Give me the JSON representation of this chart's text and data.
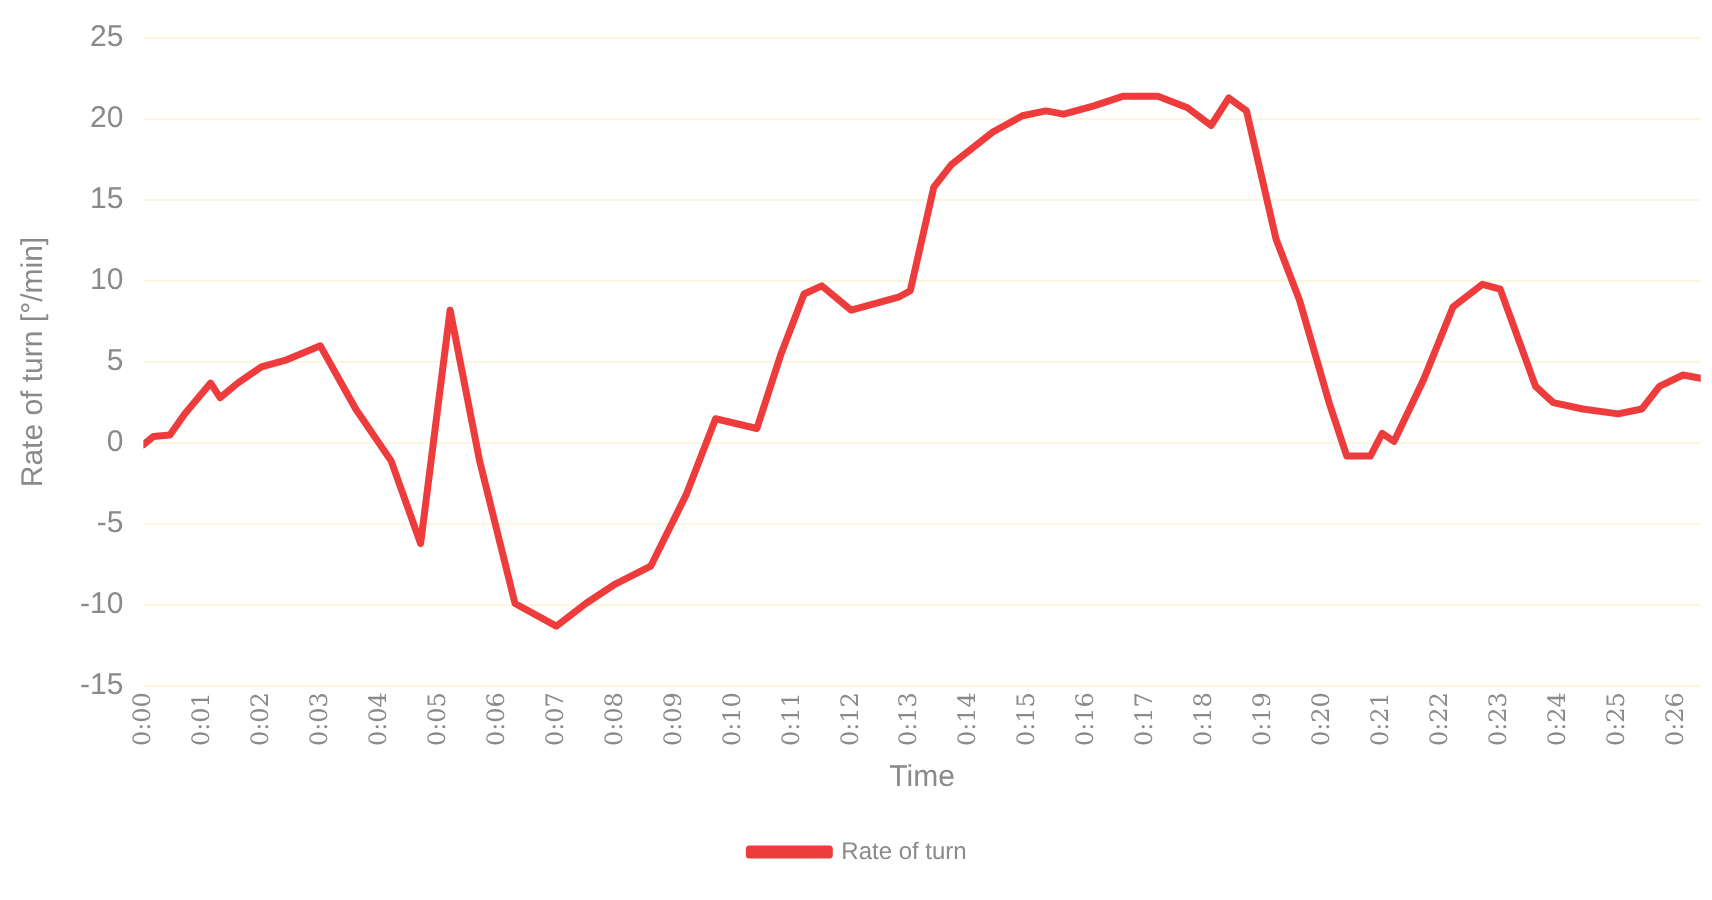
{
  "chart_data": {
    "type": "line",
    "xlabel": "Time",
    "ylabel": "Rate of turn [°/min]",
    "legend": "bottom",
    "grid": "y",
    "marker": "none",
    "line_style": "solid",
    "xlim": [
      0,
      26.4
    ],
    "ylim": [
      -15,
      25
    ],
    "yticks": [
      -15,
      -10,
      -5,
      0,
      5,
      10,
      15,
      20,
      25
    ],
    "xticks": [
      {
        "value": 0,
        "label": "0:00"
      },
      {
        "value": 1,
        "label": "0:01"
      },
      {
        "value": 2,
        "label": "0:02"
      },
      {
        "value": 3,
        "label": "0:03"
      },
      {
        "value": 4,
        "label": "0:04"
      },
      {
        "value": 5,
        "label": "0:05"
      },
      {
        "value": 6,
        "label": "0:06"
      },
      {
        "value": 7,
        "label": "0:07"
      },
      {
        "value": 8,
        "label": "0:08"
      },
      {
        "value": 9,
        "label": "0:09"
      },
      {
        "value": 10,
        "label": "0:10"
      },
      {
        "value": 11,
        "label": "0:11"
      },
      {
        "value": 12,
        "label": "0:12"
      },
      {
        "value": 13,
        "label": "0:13"
      },
      {
        "value": 14,
        "label": "0:14"
      },
      {
        "value": 15,
        "label": "0:15"
      },
      {
        "value": 16,
        "label": "0:16"
      },
      {
        "value": 17,
        "label": "0:17"
      },
      {
        "value": 18,
        "label": "0:18"
      },
      {
        "value": 19,
        "label": "0:19"
      },
      {
        "value": 20,
        "label": "0:20"
      },
      {
        "value": 21,
        "label": "0:21"
      },
      {
        "value": 22,
        "label": "0:22"
      },
      {
        "value": 23,
        "label": "0:23"
      },
      {
        "value": 24,
        "label": "0:24"
      },
      {
        "value": 25,
        "label": "0:25"
      },
      {
        "value": 26,
        "label": "0:26"
      }
    ],
    "series": [
      {
        "name": "Rate of turn",
        "color": "#ee3b3b",
        "x": [
          0,
          0.17,
          0.45,
          0.7,
          1.14,
          1.3,
          1.6,
          2.0,
          2.4,
          3.0,
          3.6,
          4.2,
          4.7,
          5.2,
          5.7,
          6.3,
          7.0,
          7.5,
          8.0,
          8.6,
          9.2,
          9.7,
          10.4,
          10.8,
          11.2,
          11.5,
          12.0,
          12.8,
          13.0,
          13.4,
          13.7,
          14.4,
          14.9,
          15.3,
          15.6,
          16.1,
          16.6,
          17.2,
          17.7,
          18.1,
          18.4,
          18.7,
          19.2,
          19.6,
          20.1,
          20.4,
          20.8,
          21.0,
          21.2,
          21.7,
          22.2,
          22.7,
          23.0,
          23.6,
          23.9,
          24.4,
          25.0,
          25.4,
          25.7,
          26.1,
          26.4
        ],
        "values": [
          -0.1,
          0.4,
          0.5,
          1.8,
          3.7,
          2.8,
          3.7,
          4.7,
          5.1,
          6.0,
          2.1,
          -1.1,
          -6.2,
          8.2,
          -1.1,
          -9.9,
          -11.3,
          -9.9,
          -8.7,
          -7.6,
          -3.2,
          1.5,
          0.9,
          5.4,
          9.2,
          9.7,
          8.2,
          9.0,
          9.4,
          15.8,
          17.2,
          19.2,
          20.2,
          20.5,
          20.3,
          20.8,
          21.4,
          21.4,
          20.7,
          19.6,
          21.3,
          20.5,
          12.6,
          8.8,
          2.5,
          -0.8,
          -0.8,
          0.6,
          0.1,
          3.9,
          8.4,
          9.8,
          9.5,
          3.5,
          2.5,
          2.1,
          1.8,
          2.1,
          3.5,
          4.2,
          4.0
        ]
      }
    ]
  }
}
